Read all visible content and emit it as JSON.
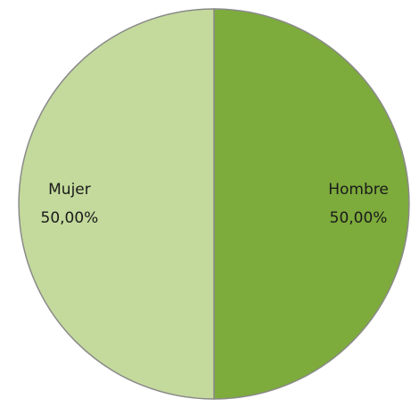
{
  "chart_data": {
    "type": "pie",
    "categories": [
      "Hombre",
      "Mujer"
    ],
    "values": [
      50,
      50
    ],
    "value_labels": [
      "50,00%",
      "50,00%"
    ],
    "colors": [
      "#7dab3c",
      "#c4da9c"
    ]
  }
}
